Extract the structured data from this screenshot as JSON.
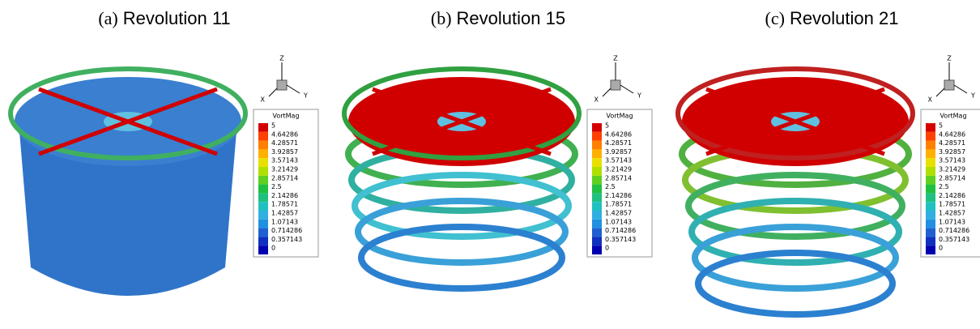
{
  "panels": [
    {
      "label": "(a)",
      "caption": "Revolution 11",
      "axes": {
        "z": "Z",
        "y": "Y",
        "x": "X"
      },
      "legend": {
        "title": "VortMag",
        "labels": [
          5,
          4.64286,
          4.28571,
          3.92857,
          3.57143,
          3.21429,
          2.85714,
          2.5,
          2.14286,
          1.78571,
          1.42857,
          1.07143,
          0.714286,
          0.357143,
          0
        ]
      }
    },
    {
      "label": "(b)",
      "caption": "Revolution 15",
      "axes": {
        "z": "Z",
        "y": "Y",
        "x": "X"
      },
      "legend": {
        "title": "VortMag",
        "labels": [
          5,
          4.64286,
          4.28571,
          3.92857,
          3.57143,
          3.21429,
          2.85714,
          2.5,
          2.14286,
          1.78571,
          1.42857,
          1.07143,
          0.714286,
          0.357143,
          0
        ]
      }
    },
    {
      "label": "(c)",
      "caption": "Revolution 21",
      "axes": {
        "z": "Z",
        "y": "Y",
        "x": "X"
      },
      "legend": {
        "title": "VortMag",
        "labels": [
          5,
          4.64286,
          4.28571,
          3.92857,
          3.57143,
          3.21429,
          2.85714,
          2.5,
          2.14286,
          1.78571,
          1.42857,
          1.07143,
          0.714286,
          0.357143,
          0
        ]
      }
    }
  ]
}
